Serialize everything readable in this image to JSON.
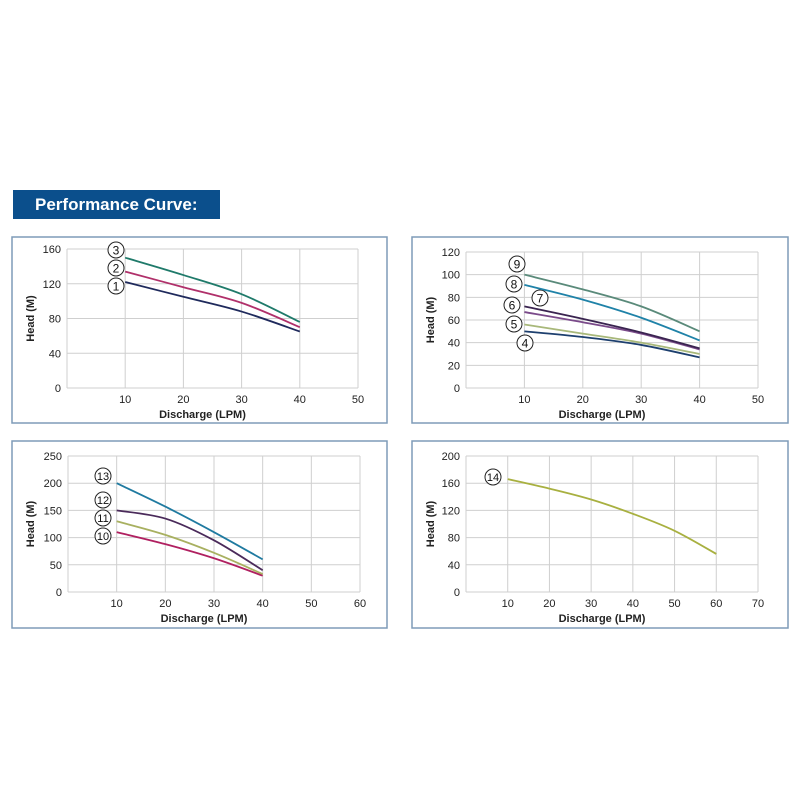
{
  "header": {
    "title": "Performance Curve:"
  },
  "chart_data": [
    {
      "type": "line",
      "xlabel": "Discharge (LPM)",
      "ylabel": "Head (M)",
      "xlim": [
        0,
        50
      ],
      "ylim": [
        0,
        160
      ],
      "xticks": [
        10,
        20,
        30,
        40,
        50
      ],
      "yticks": [
        0,
        40,
        80,
        120,
        160
      ],
      "grid": true,
      "x": [
        10,
        20,
        30,
        40
      ],
      "series": [
        {
          "name": "1",
          "values": [
            122,
            105,
            88,
            65
          ],
          "color": "#1f2a5c"
        },
        {
          "name": "2",
          "values": [
            134,
            116,
            98,
            70
          ],
          "color": "#b0306a"
        },
        {
          "name": "3",
          "values": [
            150,
            130,
            108,
            76
          ],
          "color": "#1f7a6a"
        }
      ]
    },
    {
      "type": "line",
      "xlabel": "Discharge (LPM)",
      "ylabel": "Head (M)",
      "xlim": [
        0,
        50
      ],
      "ylim": [
        0,
        120
      ],
      "xticks": [
        10,
        20,
        30,
        40,
        50
      ],
      "yticks": [
        0,
        20,
        40,
        60,
        80,
        100,
        120
      ],
      "grid": true,
      "x": [
        10,
        20,
        30,
        40
      ],
      "series": [
        {
          "name": "4",
          "values": [
            50,
            45,
            38,
            27
          ],
          "color": "#1d3f6e"
        },
        {
          "name": "5",
          "values": [
            56,
            48,
            40,
            30
          ],
          "color": "#a8b87a"
        },
        {
          "name": "6",
          "values": [
            67,
            58,
            48,
            34
          ],
          "color": "#7a4a8a"
        },
        {
          "name": "7",
          "values": [
            72,
            61,
            49,
            35
          ],
          "color": "#3a2450"
        },
        {
          "name": "8",
          "values": [
            91,
            78,
            62,
            42
          ],
          "color": "#1f82a8"
        },
        {
          "name": "9",
          "values": [
            100,
            87,
            72,
            50
          ],
          "color": "#5a8a7a"
        }
      ]
    },
    {
      "type": "line",
      "xlabel": "Discharge (LPM)",
      "ylabel": "Head (M)",
      "xlim": [
        0,
        60
      ],
      "ylim": [
        0,
        250
      ],
      "xticks": [
        10,
        20,
        30,
        40,
        50,
        60
      ],
      "yticks": [
        0,
        50,
        100,
        150,
        200,
        250
      ],
      "grid": true,
      "x": [
        10,
        20,
        30,
        40
      ],
      "series": [
        {
          "name": "10",
          "values": [
            110,
            88,
            62,
            30
          ],
          "color": "#b02060"
        },
        {
          "name": "11",
          "values": [
            130,
            105,
            72,
            33
          ],
          "color": "#a8b060"
        },
        {
          "name": "12",
          "values": [
            150,
            135,
            95,
            40
          ],
          "color": "#4a2a5a"
        },
        {
          "name": "13",
          "values": [
            200,
            157,
            110,
            60
          ],
          "color": "#1f7aa0"
        }
      ]
    },
    {
      "type": "line",
      "xlabel": "Discharge (LPM)",
      "ylabel": "Head (M)",
      "xlim": [
        0,
        70
      ],
      "ylim": [
        0,
        200
      ],
      "xticks": [
        10,
        20,
        30,
        40,
        50,
        60,
        70
      ],
      "yticks": [
        0,
        40,
        80,
        120,
        160,
        200
      ],
      "grid": true,
      "x": [
        10,
        20,
        30,
        40,
        50,
        60
      ],
      "series": [
        {
          "name": "14",
          "values": [
            166,
            152,
            136,
            115,
            90,
            56
          ],
          "color": "#a8b040"
        }
      ]
    }
  ]
}
